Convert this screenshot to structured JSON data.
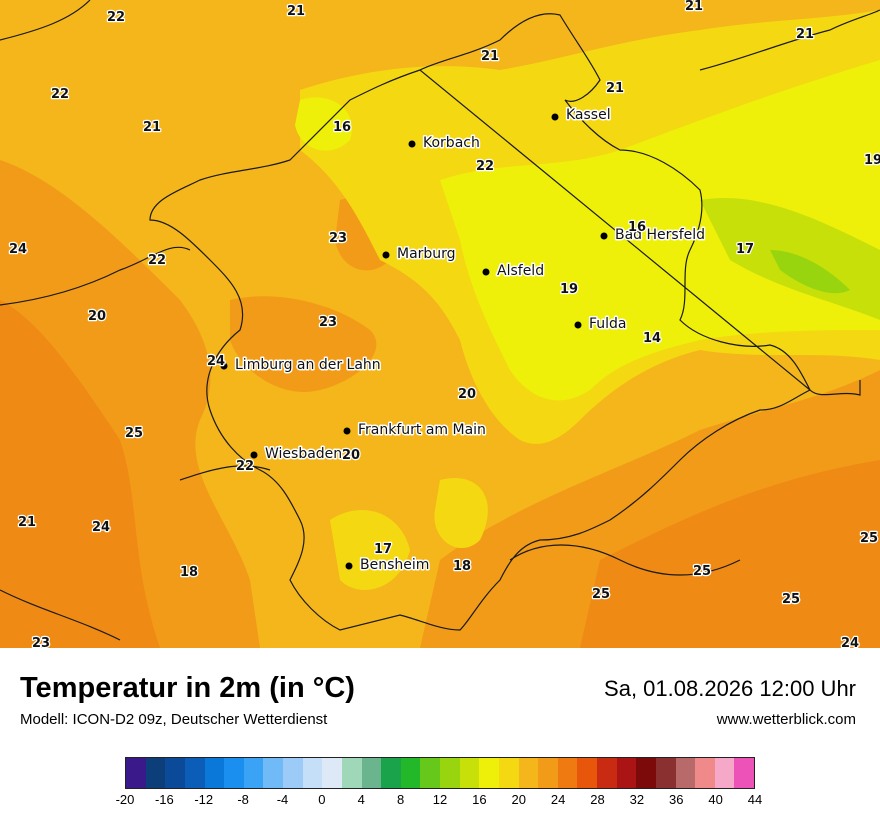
{
  "title": "Temperatur in 2m (in °C)",
  "subtitle": "Modell: ICON-D2 09z, Deutscher Wetterdienst",
  "datetime": "Sa, 01.08.2026 12:00 Uhr",
  "website": "www.wetterblick.com",
  "cities": [
    {
      "name": "Kassel"
    },
    {
      "name": "Korbach"
    },
    {
      "name": "Bad Hersfeld"
    },
    {
      "name": "Marburg"
    },
    {
      "name": "Alsfeld"
    },
    {
      "name": "Fulda"
    },
    {
      "name": "Limburg an der Lahn"
    },
    {
      "name": "Frankfurt am Main"
    },
    {
      "name": "Wiesbaden"
    },
    {
      "name": "Bensheim"
    }
  ],
  "values": [
    "22",
    "21",
    "21",
    "21",
    "22",
    "21",
    "21",
    "16",
    "22",
    "21",
    "19",
    "24",
    "22",
    "23",
    "16",
    "17",
    "20",
    "23",
    "19",
    "14",
    "24",
    "20",
    "25",
    "20",
    "22",
    "21",
    "24",
    "17",
    "18",
    "18",
    "25",
    "25",
    "25",
    "23",
    "24"
  ],
  "legend": {
    "colors": [
      "#3a1a8a",
      "#0c3f7a",
      "#0a4a99",
      "#0b5db8",
      "#0a78d8",
      "#1a8ff0",
      "#3aa3f5",
      "#70baf7",
      "#9ccbf7",
      "#c5dff8",
      "#dde9f6",
      "#9fd8b8",
      "#6ab58e",
      "#1aa34a",
      "#22b82a",
      "#66c81a",
      "#99d50f",
      "#c8e00a",
      "#eef00a",
      "#f4d812",
      "#f4b61a",
      "#f29b18",
      "#ef7a12",
      "#e8560c",
      "#c82a12",
      "#aa1414",
      "#7d0a0a",
      "#8a3030",
      "#b86a6a",
      "#f08a8a",
      "#f5a8c8",
      "#ec52b8"
    ],
    "ticks": [
      "-20",
      "-16",
      "-12",
      "-8",
      "-4",
      "0",
      "4",
      "8",
      "12",
      "16",
      "20",
      "24",
      "28",
      "32",
      "36",
      "40",
      "44"
    ]
  }
}
